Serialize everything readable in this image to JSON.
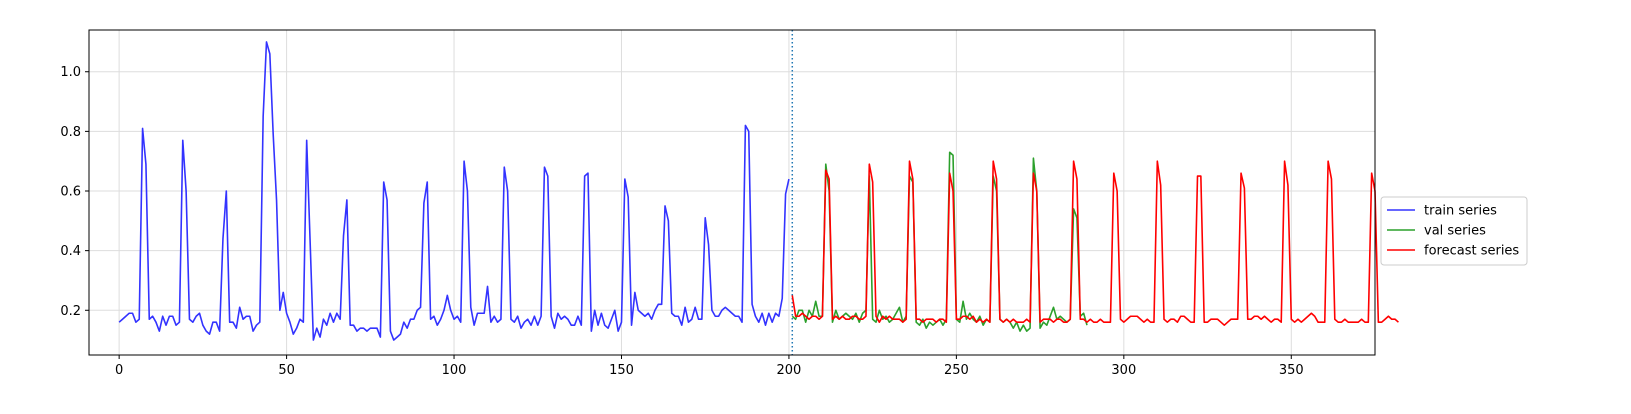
{
  "chart_data": {
    "type": "line",
    "title": "",
    "xlabel": "",
    "ylabel": "",
    "xlim": [
      -9,
      375
    ],
    "ylim": [
      0.05,
      1.14
    ],
    "x_ticks": [
      0,
      50,
      100,
      150,
      200,
      250,
      300,
      350
    ],
    "y_ticks": [
      0.2,
      0.4,
      0.6,
      0.8,
      1.0
    ],
    "x_tick_labels": [
      "0",
      "50",
      "100",
      "150",
      "200",
      "250",
      "300",
      "350"
    ],
    "y_tick_labels": [
      "0.2",
      "0.4",
      "0.6",
      "0.8",
      "1.0"
    ],
    "grid": true,
    "legend_position": "right",
    "split_marker_x": 201,
    "series": [
      {
        "name": "train series",
        "color": "#3333ff",
        "x_start": 0,
        "values": [
          0.16,
          0.17,
          0.18,
          0.19,
          0.19,
          0.16,
          0.17,
          0.81,
          0.69,
          0.17,
          0.18,
          0.16,
          0.13,
          0.18,
          0.15,
          0.18,
          0.18,
          0.15,
          0.16,
          0.77,
          0.6,
          0.17,
          0.16,
          0.18,
          0.19,
          0.15,
          0.13,
          0.12,
          0.16,
          0.16,
          0.13,
          0.44,
          0.6,
          0.16,
          0.16,
          0.14,
          0.21,
          0.17,
          0.18,
          0.18,
          0.13,
          0.15,
          0.16,
          0.85,
          1.1,
          1.06,
          0.79,
          0.57,
          0.2,
          0.26,
          0.19,
          0.16,
          0.12,
          0.14,
          0.17,
          0.16,
          0.77,
          0.44,
          0.1,
          0.14,
          0.11,
          0.17,
          0.15,
          0.19,
          0.16,
          0.19,
          0.17,
          0.45,
          0.57,
          0.15,
          0.15,
          0.13,
          0.14,
          0.14,
          0.13,
          0.14,
          0.14,
          0.14,
          0.11,
          0.63,
          0.57,
          0.13,
          0.1,
          0.11,
          0.12,
          0.16,
          0.14,
          0.17,
          0.17,
          0.2,
          0.21,
          0.56,
          0.63,
          0.17,
          0.18,
          0.15,
          0.17,
          0.2,
          0.25,
          0.2,
          0.17,
          0.18,
          0.16,
          0.7,
          0.6,
          0.21,
          0.15,
          0.19,
          0.19,
          0.19,
          0.28,
          0.16,
          0.18,
          0.16,
          0.17,
          0.68,
          0.6,
          0.17,
          0.16,
          0.18,
          0.14,
          0.16,
          0.17,
          0.15,
          0.18,
          0.15,
          0.18,
          0.68,
          0.65,
          0.18,
          0.14,
          0.19,
          0.17,
          0.18,
          0.17,
          0.15,
          0.15,
          0.18,
          0.15,
          0.65,
          0.66,
          0.13,
          0.2,
          0.15,
          0.19,
          0.15,
          0.14,
          0.17,
          0.2,
          0.13,
          0.16,
          0.64,
          0.58,
          0.15,
          0.26,
          0.2,
          0.19,
          0.18,
          0.19,
          0.17,
          0.2,
          0.22,
          0.22,
          0.55,
          0.5,
          0.19,
          0.18,
          0.18,
          0.15,
          0.21,
          0.16,
          0.17,
          0.21,
          0.17,
          0.17,
          0.51,
          0.42,
          0.2,
          0.18,
          0.18,
          0.2,
          0.21,
          0.2,
          0.19,
          0.18,
          0.18,
          0.16,
          0.82,
          0.8,
          0.22,
          0.18,
          0.16,
          0.19,
          0.15,
          0.19,
          0.16,
          0.19,
          0.18,
          0.24,
          0.59,
          0.64
        ]
      },
      {
        "name": "val series",
        "color": "#2ca02c",
        "x_start": 201,
        "values": [
          0.18,
          0.17,
          0.2,
          0.2,
          0.16,
          0.2,
          0.18,
          0.23,
          0.18,
          0.18,
          0.69,
          0.6,
          0.16,
          0.2,
          0.17,
          0.18,
          0.19,
          0.18,
          0.17,
          0.19,
          0.16,
          0.19,
          0.2,
          0.65,
          0.17,
          0.16,
          0.2,
          0.17,
          0.18,
          0.16,
          0.17,
          0.19,
          0.21,
          0.16,
          0.18,
          0.65,
          0.63,
          0.16,
          0.15,
          0.17,
          0.14,
          0.16,
          0.15,
          0.16,
          0.17,
          0.15,
          0.17,
          0.73,
          0.72,
          0.17,
          0.16,
          0.23,
          0.17,
          0.19,
          0.17,
          0.16,
          0.18,
          0.15,
          0.17,
          0.16,
          0.65,
          0.6,
          0.17,
          0.16,
          0.17,
          0.16,
          0.14,
          0.16,
          0.13,
          0.15,
          0.13,
          0.14,
          0.71,
          0.6,
          0.14,
          0.16,
          0.15,
          0.18,
          0.21,
          0.17,
          0.18,
          0.17,
          0.16,
          0.17,
          0.54,
          0.51,
          0.18,
          0.19,
          0.15
        ]
      },
      {
        "name": "forecast series",
        "color": "#ff0000",
        "x_start": 201,
        "values": [
          0.25,
          0.18,
          0.18,
          0.19,
          0.18,
          0.17,
          0.18,
          0.18,
          0.17,
          0.18,
          0.67,
          0.64,
          0.17,
          0.18,
          0.17,
          0.18,
          0.17,
          0.17,
          0.18,
          0.18,
          0.17,
          0.17,
          0.18,
          0.69,
          0.63,
          0.18,
          0.16,
          0.18,
          0.17,
          0.18,
          0.17,
          0.17,
          0.17,
          0.16,
          0.17,
          0.7,
          0.64,
          0.17,
          0.17,
          0.16,
          0.17,
          0.17,
          0.17,
          0.16,
          0.17,
          0.17,
          0.16,
          0.66,
          0.6,
          0.17,
          0.17,
          0.18,
          0.18,
          0.17,
          0.18,
          0.16,
          0.17,
          0.16,
          0.17,
          0.16,
          0.7,
          0.64,
          0.17,
          0.16,
          0.17,
          0.16,
          0.17,
          0.16,
          0.16,
          0.16,
          0.17,
          0.16,
          0.66,
          0.6,
          0.16,
          0.17,
          0.17,
          0.17,
          0.16,
          0.17,
          0.17,
          0.16,
          0.16,
          0.17,
          0.7,
          0.64,
          0.17,
          0.17,
          0.16,
          0.17,
          0.16,
          0.16,
          0.17,
          0.16,
          0.16,
          0.16,
          0.66,
          0.6,
          0.17,
          0.16,
          0.17,
          0.18,
          0.18,
          0.18,
          0.17,
          0.16,
          0.17,
          0.16,
          0.16,
          0.7,
          0.62,
          0.17,
          0.16,
          0.17,
          0.17,
          0.16,
          0.18,
          0.18,
          0.17,
          0.16,
          0.16,
          0.65,
          0.65,
          0.16,
          0.16,
          0.17,
          0.17,
          0.17,
          0.16,
          0.15,
          0.16,
          0.17,
          0.17,
          0.17,
          0.66,
          0.61,
          0.17,
          0.17,
          0.18,
          0.18,
          0.17,
          0.18,
          0.17,
          0.16,
          0.17,
          0.17,
          0.16,
          0.7,
          0.62,
          0.17,
          0.16,
          0.17,
          0.16,
          0.17,
          0.18,
          0.19,
          0.18,
          0.16,
          0.16,
          0.16,
          0.7,
          0.64,
          0.17,
          0.16,
          0.16,
          0.17,
          0.16,
          0.16,
          0.16,
          0.16,
          0.17,
          0.16,
          0.16,
          0.66,
          0.6,
          0.16,
          0.16,
          0.17,
          0.18,
          0.17,
          0.17,
          0.16
        ]
      }
    ]
  }
}
